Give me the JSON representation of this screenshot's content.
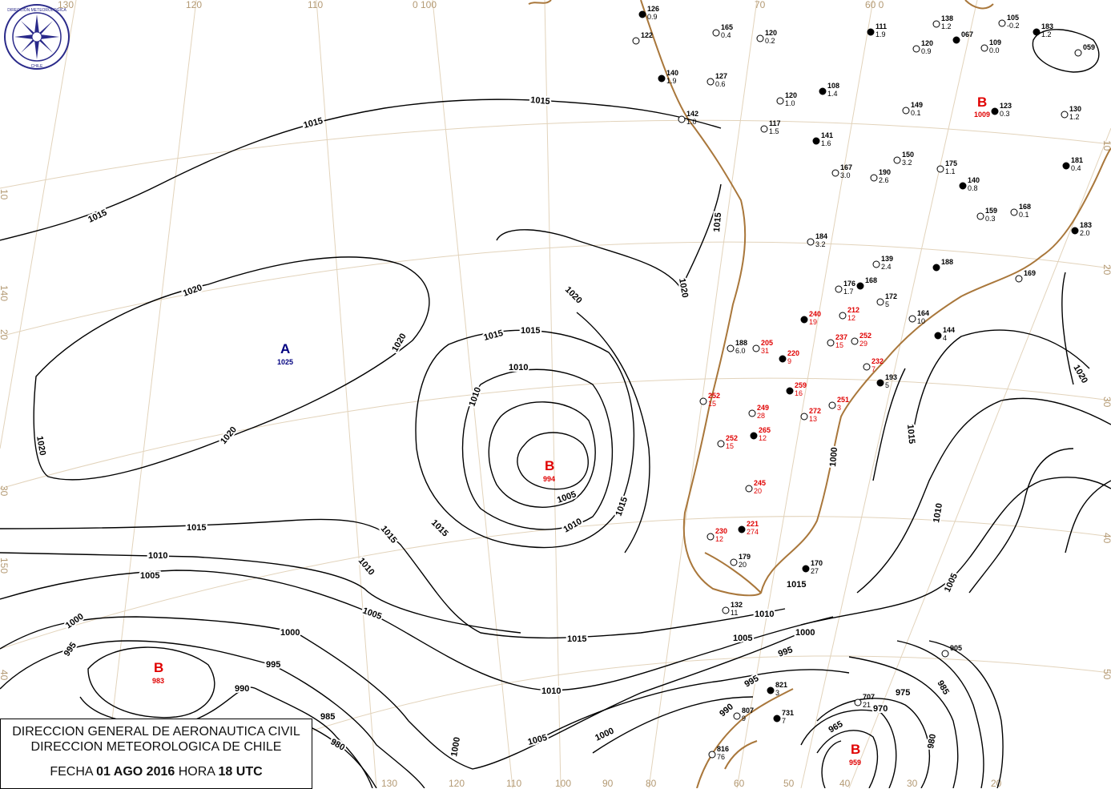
{
  "header": {
    "org_line1": "DIRECCION GENERAL DE AERONAUTICA CIVIL",
    "org_line2": "DIRECCION METEOROLOGICA DE CHILE",
    "date_label": "FECHA",
    "date_value": "01 AGO 2016",
    "time_label": "HORA",
    "time_value": "18 UTC"
  },
  "logo": {
    "text_top": "DIRECCION METEOROLOGICA",
    "text_bottom": "CHILE"
  },
  "grid_labels": {
    "top": [
      "130",
      "120",
      "110",
      "0 100",
      "70",
      "60 0"
    ],
    "left": [
      "10",
      "140",
      "20",
      "30",
      "150",
      "40"
    ],
    "right": [
      "10",
      "20",
      "30",
      "40",
      "50"
    ],
    "bottom": [
      "130",
      "120",
      "110",
      "100",
      "90",
      "80",
      "60",
      "50",
      "40",
      "30",
      "20"
    ]
  },
  "colors": {
    "high": "#000080",
    "low": "#e00000",
    "coast": "#a9773b",
    "isobar": "#000000"
  },
  "pressure_centers": [
    {
      "type": "A",
      "value": "1025"
    },
    {
      "type": "B",
      "value": "994"
    },
    {
      "type": "B",
      "value": "983"
    },
    {
      "type": "B",
      "value": "959"
    },
    {
      "type": "B",
      "value": "1009"
    }
  ],
  "isobar_labels": [
    "1015",
    "1015",
    "1015",
    "1020",
    "1020",
    "1020",
    "1020",
    "1020",
    "1015",
    "1015",
    "1010",
    "1010",
    "1015",
    "1015",
    "1015",
    "1005",
    "1010",
    "1015",
    "1010",
    "1005",
    "1000",
    "995",
    "990",
    "985",
    "980",
    "1000",
    "995",
    "1010",
    "1005",
    "1000",
    "1015",
    "1010",
    "1005",
    "1000",
    "995",
    "1015",
    "1020",
    "1015",
    "1010",
    "1005",
    "1000",
    "1000",
    "995",
    "990",
    "985",
    "975",
    "970",
    "965",
    "980",
    "1005",
    "1010",
    "1015",
    "1020"
  ],
  "stations": [
    {
      "id": "126",
      "v": "0.9"
    },
    {
      "id": "165",
      "v": "0.4"
    },
    {
      "id": "120",
      "v": "0.2"
    },
    {
      "id": "111",
      "v": "1.9"
    },
    {
      "id": "138",
      "v": "1.2"
    },
    {
      "id": "105",
      "v": "-0.2"
    },
    {
      "id": "183",
      "v": "1.2"
    },
    {
      "id": "059",
      "v": ""
    },
    {
      "id": "122",
      "v": ""
    },
    {
      "id": "067",
      "v": ""
    },
    {
      "id": "120",
      "v": "0.9"
    },
    {
      "id": "109",
      "v": "0.0"
    },
    {
      "id": "140",
      "v": "1.9"
    },
    {
      "id": "127",
      "v": "0.6"
    },
    {
      "id": "120",
      "v": "1.0"
    },
    {
      "id": "108",
      "v": "1.4"
    },
    {
      "id": "142",
      "v": "1.0"
    },
    {
      "id": "149",
      "v": "0.1"
    },
    {
      "id": "123",
      "v": "0.3"
    },
    {
      "id": "130",
      "v": "1.2"
    },
    {
      "id": "117",
      "v": "1.5"
    },
    {
      "id": "141",
      "v": "1.6"
    },
    {
      "id": "150",
      "v": "3.2"
    },
    {
      "id": "175",
      "v": "1.1"
    },
    {
      "id": "181",
      "v": "0.4"
    },
    {
      "id": "167",
      "v": "3.0"
    },
    {
      "id": "190",
      "v": "2.6"
    },
    {
      "id": "140",
      "v": "0.8"
    },
    {
      "id": "159",
      "v": "0.3"
    },
    {
      "id": "168",
      "v": "0.1"
    },
    {
      "id": "183",
      "v": "2.0"
    },
    {
      "id": "184",
      "v": "3.2"
    },
    {
      "id": "139",
      "v": "2.4"
    },
    {
      "id": "188",
      "v": ""
    },
    {
      "id": "169",
      "v": ""
    },
    {
      "id": "176",
      "v": "1.7"
    },
    {
      "id": "168",
      "v": ""
    },
    {
      "id": "172",
      "v": "5"
    },
    {
      "id": "164",
      "v": "10"
    },
    {
      "id": "144",
      "v": "4"
    },
    {
      "id": "188",
      "v": "6.0"
    },
    {
      "id": "205",
      "v": "31"
    },
    {
      "id": "240",
      "v": "19"
    },
    {
      "id": "212",
      "v": "12"
    },
    {
      "id": "252",
      "v": "29"
    },
    {
      "id": "220",
      "v": "9"
    },
    {
      "id": "237",
      "v": "15"
    },
    {
      "id": "232",
      "v": "7"
    },
    {
      "id": "193",
      "v": "5"
    },
    {
      "id": "252",
      "v": "15"
    },
    {
      "id": "249",
      "v": "28"
    },
    {
      "id": "259",
      "v": "16"
    },
    {
      "id": "272",
      "v": "13"
    },
    {
      "id": "251",
      "v": "3"
    },
    {
      "id": "265",
      "v": "12"
    },
    {
      "id": "252",
      "v": "15"
    },
    {
      "id": "245",
      "v": "20"
    },
    {
      "id": "221",
      "v": "274"
    },
    {
      "id": "230",
      "v": "12"
    },
    {
      "id": "179",
      "v": "20"
    },
    {
      "id": "170",
      "v": "27"
    },
    {
      "id": "132",
      "v": "11"
    },
    {
      "id": "905",
      "v": ""
    },
    {
      "id": "821",
      "v": "3"
    },
    {
      "id": "707",
      "v": "21"
    },
    {
      "id": "807",
      "v": "9"
    },
    {
      "id": "731",
      "v": "7"
    },
    {
      "id": "816",
      "v": "76"
    }
  ]
}
